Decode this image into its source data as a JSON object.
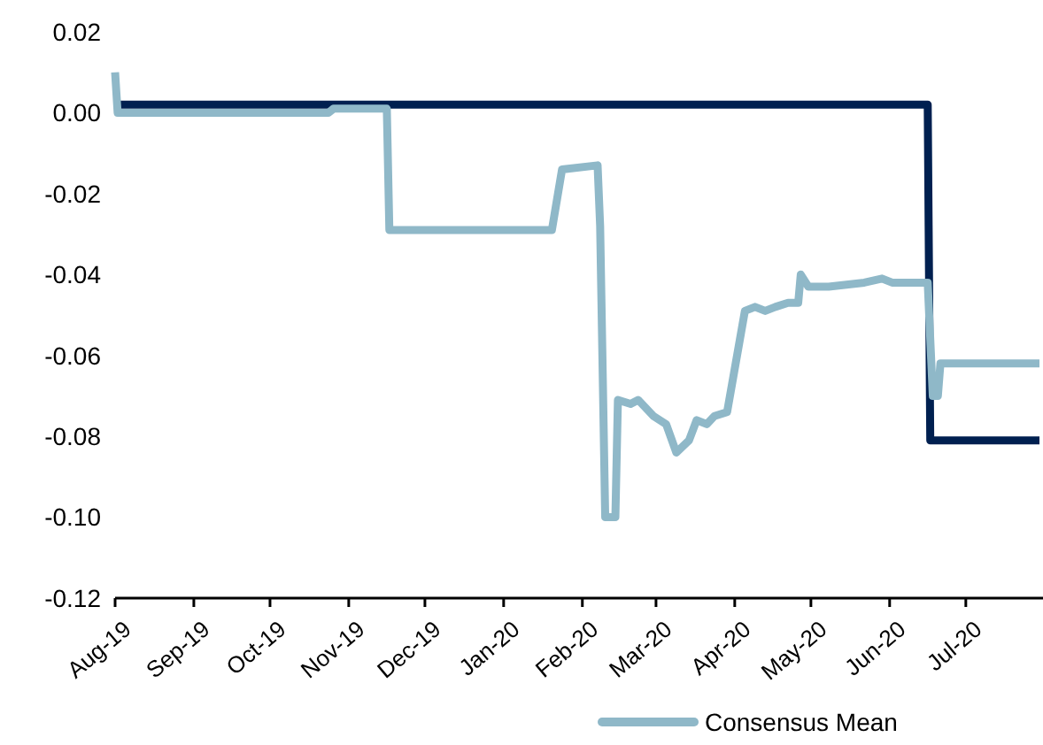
{
  "chart_data": {
    "type": "line",
    "legend": "bottom",
    "grid": false,
    "xlim": [
      "2019-08-01",
      "2020-07-30"
    ],
    "xticks": [
      {
        "value": "2019-08-01",
        "label": "Aug-19"
      },
      {
        "value": "2019-09-01",
        "label": "Sep-19"
      },
      {
        "value": "2019-10-01",
        "label": "Oct-19"
      },
      {
        "value": "2019-11-01",
        "label": "Nov-19"
      },
      {
        "value": "2019-12-01",
        "label": "Dec-19"
      },
      {
        "value": "2020-01-01",
        "label": "Jan-20"
      },
      {
        "value": "2020-02-01",
        "label": "Feb-20"
      },
      {
        "value": "2020-03-01",
        "label": "Mar-20"
      },
      {
        "value": "2020-04-01",
        "label": "Apr-20"
      },
      {
        "value": "2020-05-01",
        "label": "May-20"
      },
      {
        "value": "2020-06-01",
        "label": "Jun-20"
      },
      {
        "value": "2020-07-01",
        "label": "Jul-20"
      }
    ],
    "ylim": [
      -0.12,
      0.02
    ],
    "yticks": [
      {
        "value": -0.12,
        "label": "-0.12"
      },
      {
        "value": -0.1,
        "label": "-0.10"
      },
      {
        "value": -0.08,
        "label": "-0.08"
      },
      {
        "value": -0.06,
        "label": "-0.06"
      },
      {
        "value": -0.04,
        "label": "-0.04"
      },
      {
        "value": -0.02,
        "label": "-0.02"
      },
      {
        "value": 0,
        "label": "0.00"
      },
      {
        "value": 0.02,
        "label": "0.02"
      }
    ],
    "series": [
      {
        "color": "#002050",
        "x": [
          "2019-08-01",
          "2020-06-16",
          "2020-06-17",
          "2020-07-30"
        ],
        "values": [
          0.002,
          0.002,
          -0.081,
          -0.081
        ]
      },
      {
        "name": "Consensus Mean",
        "color": "#8fb8c8",
        "x": [
          "2019-08-01",
          "2019-08-02",
          "2019-10-24",
          "2019-10-26",
          "2019-11-16",
          "2019-11-17",
          "2020-01-20",
          "2020-01-24",
          "2020-02-07",
          "2020-02-08",
          "2020-02-10",
          "2020-02-14",
          "2020-02-15",
          "2020-02-20",
          "2020-02-23",
          "2020-02-29",
          "2020-03-05",
          "2020-03-09",
          "2020-03-14",
          "2020-03-17",
          "2020-03-21",
          "2020-03-24",
          "2020-03-29",
          "2020-04-05",
          "2020-04-09",
          "2020-04-13",
          "2020-04-17",
          "2020-04-22",
          "2020-04-26",
          "2020-04-27",
          "2020-04-30",
          "2020-05-08",
          "2020-05-22",
          "2020-05-29",
          "2020-06-02",
          "2020-06-12",
          "2020-06-16",
          "2020-06-18",
          "2020-06-20",
          "2020-06-21",
          "2020-07-03",
          "2020-07-17",
          "2020-07-30"
        ],
        "values": [
          0.01,
          0,
          0,
          0.001,
          0.001,
          -0.029,
          -0.029,
          -0.014,
          -0.013,
          -0.028,
          -0.1,
          -0.1,
          -0.071,
          -0.072,
          -0.071,
          -0.075,
          -0.077,
          -0.084,
          -0.081,
          -0.076,
          -0.077,
          -0.075,
          -0.074,
          -0.049,
          -0.048,
          -0.049,
          -0.048,
          -0.047,
          -0.047,
          -0.04,
          -0.043,
          -0.043,
          -0.042,
          -0.041,
          -0.042,
          -0.042,
          -0.042,
          -0.07,
          -0.07,
          -0.062,
          -0.062,
          -0.062,
          -0.062
        ]
      }
    ]
  }
}
